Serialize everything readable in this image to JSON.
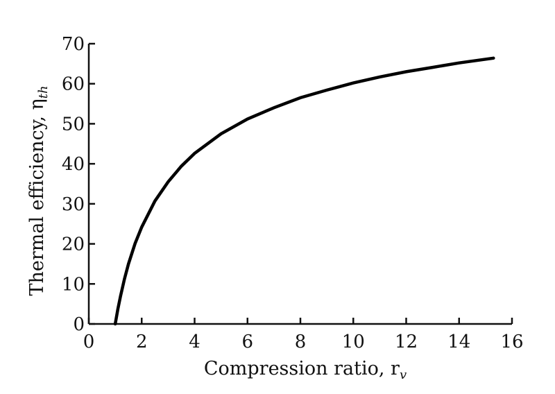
{
  "chart_data": {
    "type": "line",
    "title": "",
    "xlabel": "Compression ratio, r",
    "xlabel_sub": "v",
    "ylabel": "Thermal efficiency, η",
    "ylabel_sub": "th",
    "xlim": [
      0,
      16
    ],
    "ylim": [
      0,
      70
    ],
    "xticks": [
      0,
      2,
      4,
      6,
      8,
      10,
      12,
      14,
      16
    ],
    "yticks": [
      0,
      10,
      20,
      30,
      40,
      50,
      60,
      70
    ],
    "grid": false,
    "legend": "none",
    "series": [
      {
        "x": [
          1,
          1.1,
          1.2,
          1.35,
          1.5,
          1.75,
          2,
          2.5,
          3,
          3.5,
          4,
          5,
          6,
          7,
          8,
          9,
          10,
          11,
          12,
          13,
          14,
          15.3
        ],
        "y": [
          0,
          3.7,
          7.0,
          11.3,
          15.0,
          20.1,
          24.2,
          30.7,
          35.5,
          39.4,
          42.6,
          47.5,
          51.2,
          54.0,
          56.5,
          58.4,
          60.2,
          61.7,
          63.0,
          64.1,
          65.2,
          66.4
        ]
      }
    ]
  }
}
